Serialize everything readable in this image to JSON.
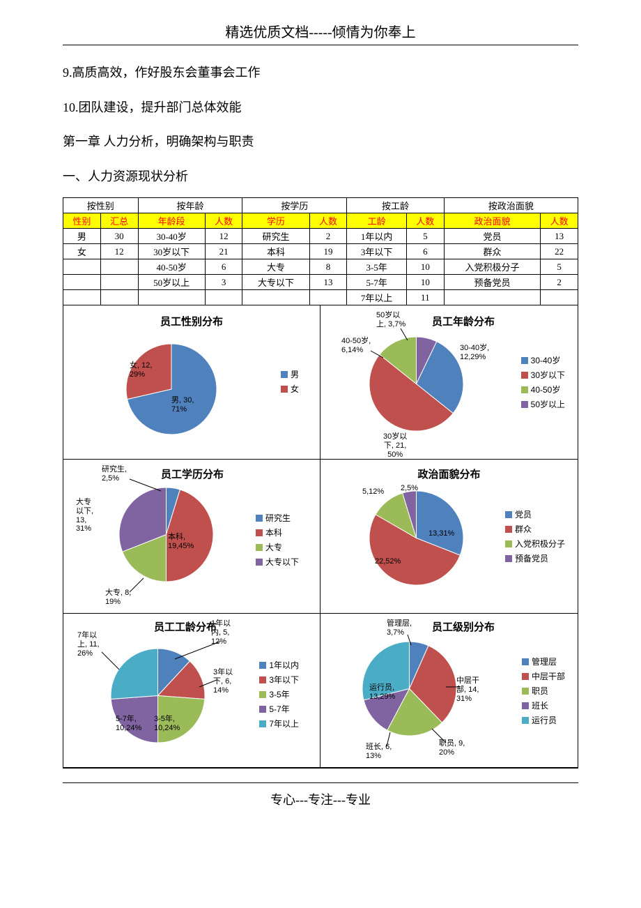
{
  "header": {
    "text_left": "精选优质文档",
    "sep": "-----",
    "text_right": "倾情为你奉上"
  },
  "body": {
    "item9": "9.高质高效，作好股东会董事会工作",
    "item10": "10.团队建设，提升部门总体效能",
    "chapter": "第一章 人力分析，明确架构与职责",
    "section": "一、人力资源现状分析"
  },
  "table": {
    "groups": [
      "按性别",
      "按年龄",
      "按学历",
      "按工龄",
      "按政治面貌"
    ],
    "headers": {
      "c1": "性别",
      "c2": "汇总",
      "c3": "年龄段",
      "c4": "人数",
      "c5": "学历",
      "c6": "人数",
      "c7": "工龄",
      "c8": "人数",
      "c9": "政治面貌",
      "c10": "人数"
    },
    "rows": [
      {
        "c1": "男",
        "c2": "30",
        "c3": "30-40岁",
        "c4": "12",
        "c5": "研究生",
        "c6": "2",
        "c7": "1年以内",
        "c8": "5",
        "c9": "党员",
        "c10": "13"
      },
      {
        "c1": "女",
        "c2": "12",
        "c3": "30岁以下",
        "c4": "21",
        "c5": "本科",
        "c6": "19",
        "c7": "3年以下",
        "c8": "6",
        "c9": "群众",
        "c10": "22"
      },
      {
        "c1": "",
        "c2": "",
        "c3": "40-50岁",
        "c4": "6",
        "c5": "大专",
        "c6": "8",
        "c7": "3-5年",
        "c8": "10",
        "c9": "入党积极分子",
        "c10": "5"
      },
      {
        "c1": "",
        "c2": "",
        "c3": "50岁以上",
        "c4": "3",
        "c5": "大专以下",
        "c6": "13",
        "c7": "5-7年",
        "c8": "10",
        "c9": "预备党员",
        "c10": "2"
      },
      {
        "c1": "",
        "c2": "",
        "c3": "",
        "c4": "",
        "c5": "",
        "c6": "",
        "c7": "7年以上",
        "c8": "11",
        "c9": "",
        "c10": ""
      }
    ]
  },
  "colors": {
    "c1": "#4f81bd",
    "c2": "#c0504d",
    "c3": "#9bbb59",
    "c4": "#8064a2",
    "c5": "#4bacc6"
  },
  "charts": {
    "gender": {
      "title": "员工性别分布",
      "slices": [
        {
          "label": "男",
          "val": 30,
          "pct": 71,
          "color": "#4f81bd",
          "dl": "男, 30,\n71%"
        },
        {
          "label": "女",
          "val": 12,
          "pct": 29,
          "color": "#c0504d",
          "dl": "女, 12,\n29%"
        }
      ],
      "legend": [
        "男",
        "女"
      ]
    },
    "age": {
      "title": "员工年龄分布",
      "slices": [
        {
          "label": "30-40岁",
          "val": 12,
          "pct": 29,
          "color": "#4f81bd",
          "dl": "30-40岁,\n12,29%"
        },
        {
          "label": "30岁以下",
          "val": 21,
          "pct": 50,
          "color": "#c0504d",
          "dl": "30岁以\n下, 21,\n50%"
        },
        {
          "label": "40-50岁",
          "val": 6,
          "pct": 14,
          "color": "#9bbb59",
          "dl": "40-50岁,\n6,14%"
        },
        {
          "label": "50岁以上",
          "val": 3,
          "pct": 7,
          "color": "#8064a2",
          "dl": "50岁以\n上, 3,7%"
        }
      ],
      "legend": [
        "30-40岁",
        "30岁以下",
        "40-50岁",
        "50岁以上"
      ]
    },
    "edu": {
      "title": "员工学历分布",
      "slices": [
        {
          "label": "研究生",
          "val": 2,
          "pct": 5,
          "color": "#4f81bd",
          "dl": "研究生,\n2,5%"
        },
        {
          "label": "本科",
          "val": 19,
          "pct": 45,
          "color": "#c0504d",
          "dl": "本科,\n19,45%"
        },
        {
          "label": "大专",
          "val": 8,
          "pct": 19,
          "color": "#9bbb59",
          "dl": "大专, 8,\n19%"
        },
        {
          "label": "大专以下",
          "val": 13,
          "pct": 31,
          "color": "#8064a2",
          "dl": "大专\n以下,\n13,\n31%"
        }
      ],
      "legend": [
        "研究生",
        "本科",
        "大专",
        "大专以下"
      ]
    },
    "pol": {
      "title": "政治面貌分布",
      "slices": [
        {
          "label": "党员",
          "val": 13,
          "pct": 31,
          "color": "#4f81bd",
          "dl": "13,31%"
        },
        {
          "label": "群众",
          "val": 22,
          "pct": 52,
          "color": "#c0504d",
          "dl": "22,52%"
        },
        {
          "label": "入党积极分子",
          "val": 5,
          "pct": 12,
          "color": "#9bbb59",
          "dl": "5,12%"
        },
        {
          "label": "预备党员",
          "val": 2,
          "pct": 5,
          "color": "#8064a2",
          "dl": "2,5%"
        }
      ],
      "legend": [
        "党员",
        "群众",
        "入党积极分子",
        "预备党员"
      ]
    },
    "tenure": {
      "title": "员工工龄分布",
      "slices": [
        {
          "label": "1年以内",
          "val": 5,
          "pct": 12,
          "color": "#4f81bd",
          "dl": "1年以\n内, 5,\n12%"
        },
        {
          "label": "3年以下",
          "val": 6,
          "pct": 14,
          "color": "#c0504d",
          "dl": "3年以\n下, 6,\n14%"
        },
        {
          "label": "3-5年",
          "val": 10,
          "pct": 24,
          "color": "#9bbb59",
          "dl": "3-5年,\n10,24%"
        },
        {
          "label": "5-7年",
          "val": 10,
          "pct": 24,
          "color": "#8064a2",
          "dl": "5-7年,\n10,24%"
        },
        {
          "label": "7年以上",
          "val": 11,
          "pct": 26,
          "color": "#4bacc6",
          "dl": "7年以\n上, 11,\n26%"
        }
      ],
      "legend": [
        "1年以内",
        "3年以下",
        "3-5年",
        "5-7年",
        "7年以上"
      ]
    },
    "level": {
      "title": "员工级别分布",
      "slices": [
        {
          "label": "管理层",
          "val": 3,
          "pct": 7,
          "color": "#4f81bd",
          "dl": "管理层,\n3,7%"
        },
        {
          "label": "中层干部",
          "val": 14,
          "pct": 31,
          "color": "#c0504d",
          "dl": "中层干\n部, 14,\n31%"
        },
        {
          "label": "职员",
          "val": 9,
          "pct": 20,
          "color": "#9bbb59",
          "dl": "职员, 9,\n20%"
        },
        {
          "label": "班长",
          "val": 6,
          "pct": 13,
          "color": "#8064a2",
          "dl": "班长, 6,\n13%"
        },
        {
          "label": "运行员",
          "val": 13,
          "pct": 29,
          "color": "#4bacc6",
          "dl": "运行员,\n13,29%"
        }
      ],
      "legend": [
        "管理层",
        "中层干部",
        "职员",
        "班长",
        "运行员"
      ]
    }
  },
  "footer": "专心---专注---专业"
}
